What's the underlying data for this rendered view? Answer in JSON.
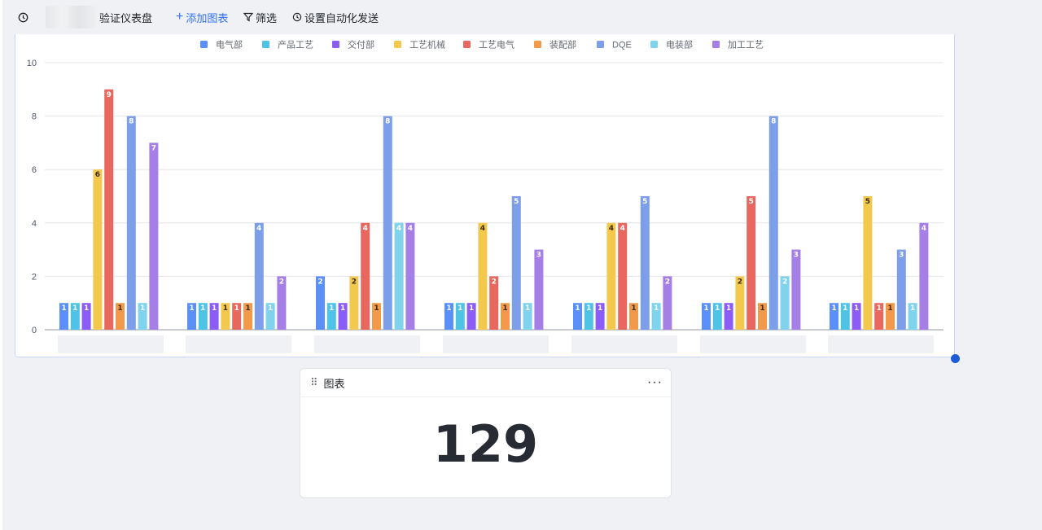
{
  "toolbar": {
    "dashboard_title": "验证仪表盘",
    "add_chart": "添加图表",
    "filter": "筛选",
    "auto_send": "设置自动化发送"
  },
  "colors": {
    "accent": "#3370ff",
    "handle": "#1d5bd8"
  },
  "chart_data": {
    "type": "bar",
    "categories": [
      "",
      "",
      "",
      "",
      "",
      "",
      ""
    ],
    "ylim": [
      0,
      10
    ],
    "yticks": [
      0,
      2,
      4,
      6,
      8,
      10
    ],
    "grid": true,
    "legend_position": "top-center",
    "series": [
      {
        "name": "电气部",
        "color": "#5b8ff9",
        "values": [
          1,
          1,
          2,
          1,
          1,
          1,
          1
        ]
      },
      {
        "name": "产品工艺",
        "color": "#4ec3e6",
        "values": [
          1,
          1,
          1,
          1,
          1,
          1,
          1
        ]
      },
      {
        "name": "交付部",
        "color": "#8b5cf6",
        "values": [
          1,
          1,
          1,
          1,
          1,
          1,
          1
        ]
      },
      {
        "name": "工艺机械",
        "color": "#f2c94c",
        "values": [
          6,
          1,
          2,
          4,
          4,
          2,
          5
        ]
      },
      {
        "name": "工艺电气",
        "color": "#e8685f",
        "values": [
          9,
          1,
          4,
          2,
          4,
          5,
          1
        ]
      },
      {
        "name": "装配部",
        "color": "#f2994a",
        "values": [
          1,
          1,
          1,
          1,
          1,
          1,
          1
        ]
      },
      {
        "name": "DQE",
        "color": "#7d9ee8",
        "values": [
          8,
          4,
          8,
          5,
          5,
          8,
          3
        ]
      },
      {
        "name": "电装部",
        "color": "#7fd3ec",
        "values": [
          1,
          1,
          4,
          1,
          1,
          2,
          1
        ]
      },
      {
        "name": "加工工艺",
        "color": "#a57ee6",
        "values": [
          7,
          2,
          4,
          3,
          2,
          3,
          4
        ]
      }
    ]
  },
  "kpi": {
    "title": "图表",
    "value": "129"
  }
}
